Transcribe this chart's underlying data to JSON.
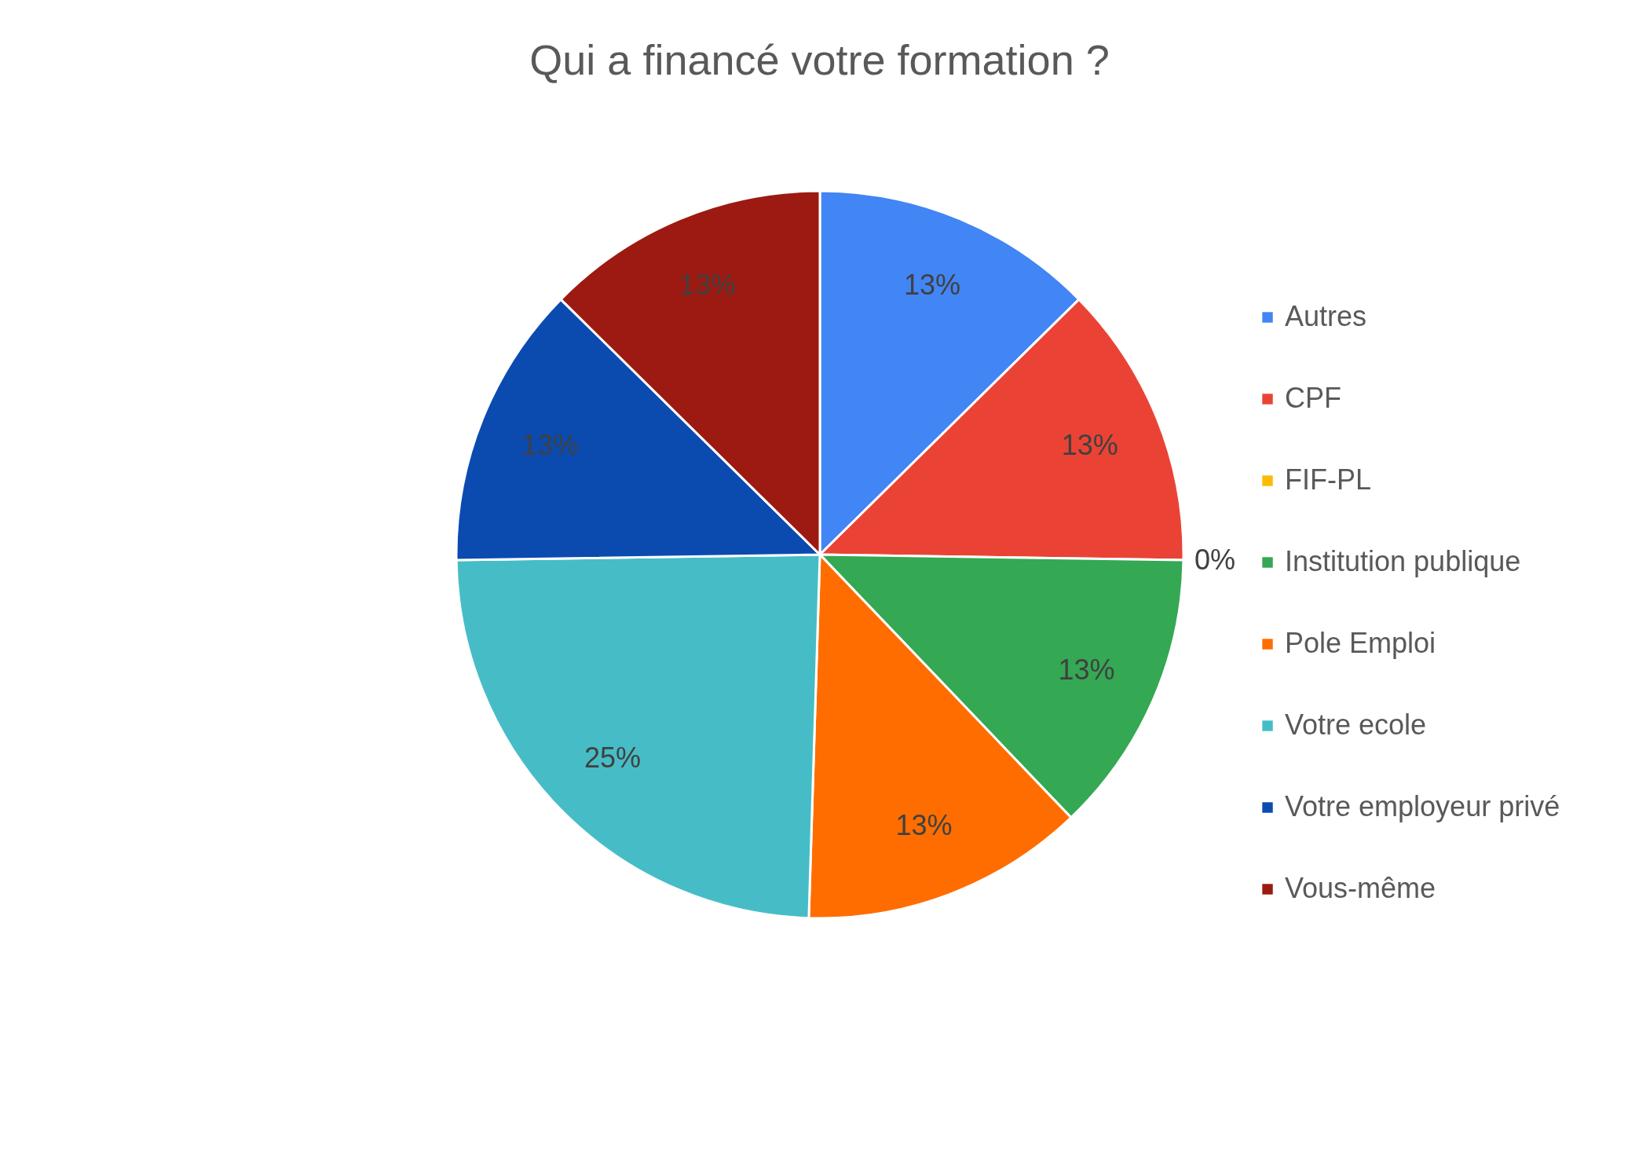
{
  "chart_data": {
    "type": "pie",
    "title": "Qui a financé votre formation ?",
    "categories": [
      "Autres",
      "CPF",
      "FIF-PL",
      "Institution publique",
      "Pole Emploi",
      "Votre ecole",
      "Votre employeur privé",
      "Vous-même"
    ],
    "values": [
      13,
      13,
      0,
      13,
      13,
      25,
      13,
      13
    ],
    "value_labels": [
      "13%",
      "13%",
      "0%",
      "13%",
      "13%",
      "25%",
      "13%",
      "13%"
    ],
    "colors": [
      "#4285f4",
      "#ea4335",
      "#fbbc04",
      "#34a853",
      "#ff6d01",
      "#46bdc6",
      "#0b4bb0",
      "#9c1a11"
    ],
    "legend": "right"
  }
}
